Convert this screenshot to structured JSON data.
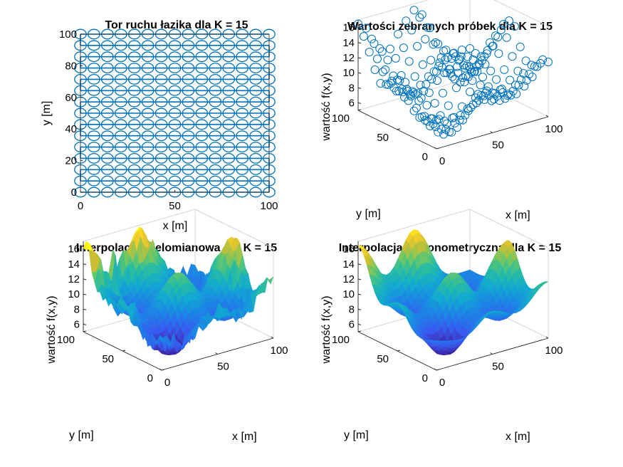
{
  "chart_data": [
    {
      "type": "line",
      "title": "Tor ruchu łazika dla K = 15",
      "xlabel": "x [m]",
      "ylabel": "y [m]",
      "xlim": [
        0,
        100
      ],
      "ylim": [
        0,
        100
      ],
      "xticks": [
        "0",
        "50",
        "100"
      ],
      "yticks": [
        "0",
        "20",
        "40",
        "60",
        "80",
        "100"
      ],
      "grid": false,
      "series": [
        {
          "marker": "circle",
          "color": "#0072BD",
          "x": [
            0,
            7.14,
            14.29,
            21.43,
            28.57,
            35.71,
            42.86,
            50,
            57.14,
            64.29,
            71.43,
            78.57,
            85.71,
            92.86,
            100
          ],
          "y": [
            0,
            7.14,
            14.29,
            21.43,
            28.57,
            35.71,
            42.86,
            50,
            57.14,
            64.29,
            71.43,
            78.57,
            85.71,
            92.86,
            100
          ],
          "path": "boustrophedon (serpentine) along x, rows at each y value"
        }
      ]
    },
    {
      "type": "scatter",
      "title": "Wartości zebranych próbek dla K = 15",
      "xlabel": "x [m]",
      "ylabel": "y [m]",
      "zlabel": "wartość f(x,y)",
      "xticks": [
        "0",
        "50",
        "100"
      ],
      "yticks": [
        "0",
        "50",
        "100"
      ],
      "zticks": [
        "6",
        "8",
        "10",
        "12",
        "14",
        "16"
      ],
      "zlim": [
        5,
        17
      ],
      "marker_color": "#0072BD"
    },
    {
      "type": "surface",
      "title": "Interpolacja wielomianowa dla K = 15",
      "xlabel": "x [m]",
      "ylabel": "y [m]",
      "zlabel": "wartość f(x,y)",
      "xticks": [
        "0",
        "50",
        "100"
      ],
      "yticks": [
        "0",
        "50",
        "100"
      ],
      "zticks": [
        "6",
        "8",
        "10",
        "12",
        "14",
        "16"
      ],
      "zlim": [
        5,
        17
      ],
      "colormap": "parula"
    },
    {
      "type": "surface",
      "title": "Interpolacja trygonometryczna dla K = 15",
      "xlabel": "x [m]",
      "ylabel": "y [m]",
      "zlabel": "wartość f(x,y)",
      "xticks": [
        "0",
        "50",
        "100"
      ],
      "yticks": [
        "0",
        "50",
        "100"
      ],
      "zticks": [
        "6",
        "8",
        "10",
        "12",
        "14",
        "16"
      ],
      "zlim": [
        5,
        17
      ],
      "colormap": "parula"
    }
  ]
}
